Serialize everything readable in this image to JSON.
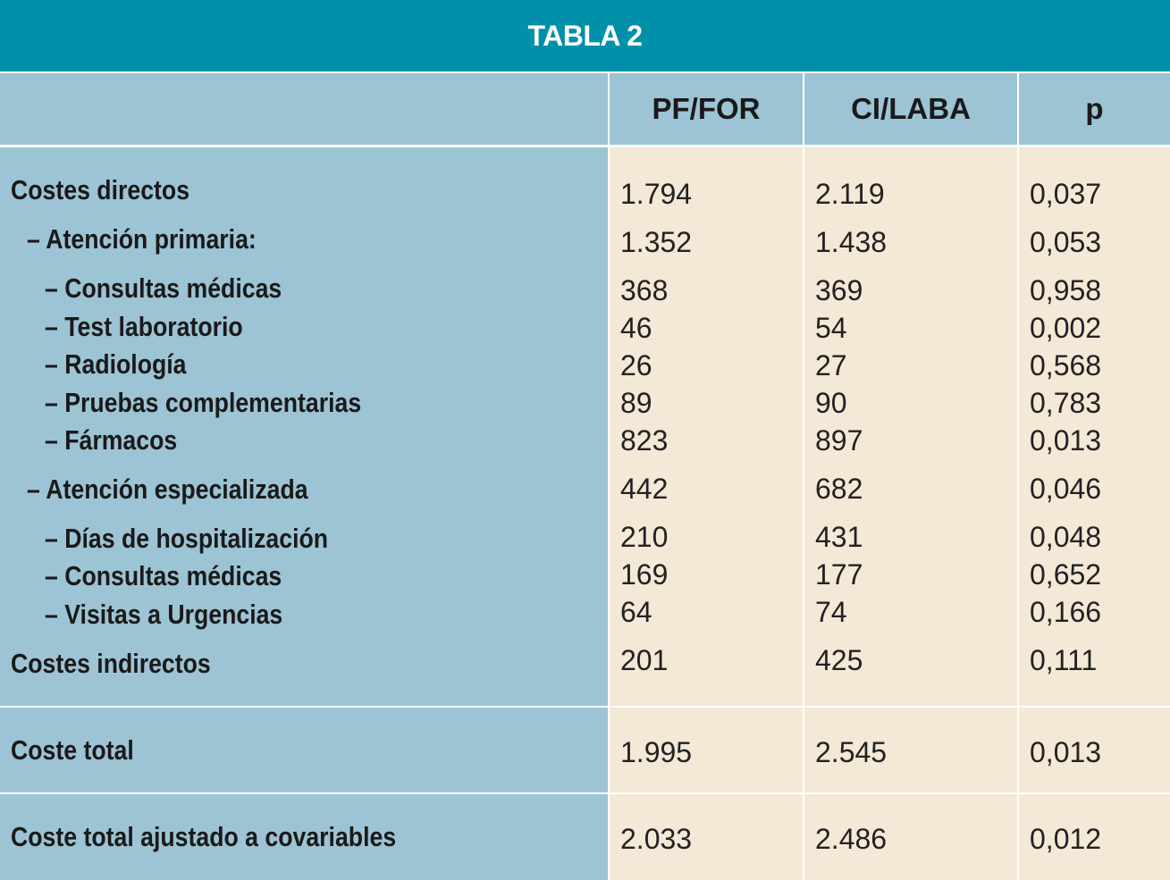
{
  "title": "TABLA 2",
  "columns": [
    "",
    "PF/FOR",
    "CI/LABA",
    "p"
  ],
  "rows": [
    {
      "label": "Costes directos",
      "pf_for": "1.794",
      "ci_laba": "2.119",
      "p": "0,037"
    },
    {
      "label": "– Atención primaria:",
      "pf_for": "1.352",
      "ci_laba": "1.438",
      "p": "0,053"
    },
    {
      "label": "– Consultas médicas",
      "pf_for": "368",
      "ci_laba": "369",
      "p": "0,958"
    },
    {
      "label": "– Test laboratorio",
      "pf_for": "46",
      "ci_laba": "54",
      "p": "0,002"
    },
    {
      "label": "– Radiología",
      "pf_for": "26",
      "ci_laba": "27",
      "p": "0,568"
    },
    {
      "label": "– Pruebas complementarias",
      "pf_for": "89",
      "ci_laba": "90",
      "p": "0,783"
    },
    {
      "label": "– Fármacos",
      "pf_for": "823",
      "ci_laba": "897",
      "p": "0,013"
    },
    {
      "label": "– Atención especializada",
      "pf_for": "442",
      "ci_laba": "682",
      "p": "0,046"
    },
    {
      "label": "– Días de hospitalización",
      "pf_for": "210",
      "ci_laba": "431",
      "p": "0,048"
    },
    {
      "label": "– Consultas médicas",
      "pf_for": "169",
      "ci_laba": "177",
      "p": "0,652"
    },
    {
      "label": "– Visitas a Urgencias",
      "pf_for": "64",
      "ci_laba": "74",
      "p": "0,166"
    },
    {
      "label": "Costes indirectos",
      "pf_for": "201",
      "ci_laba": "425",
      "p": "0,111"
    }
  ],
  "total": {
    "label": "Coste total",
    "pf_for": "1.995",
    "ci_laba": "2.545",
    "p": "0,013"
  },
  "adjusted": {
    "label": "Coste total ajustado a covariables",
    "pf_for": "2.033",
    "ci_laba": "2.486",
    "p": "0,012"
  },
  "colors": {
    "title_bg": "#0090a9",
    "label_bg": "#9dc4d4",
    "value_bg": "#f4e8d6"
  }
}
